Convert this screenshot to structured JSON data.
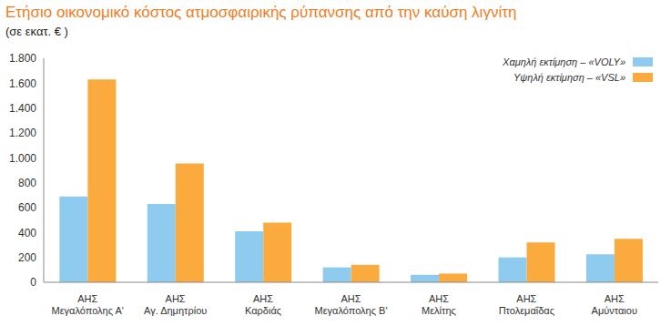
{
  "chart_data": {
    "type": "bar",
    "title": "Ετήσιο οικονομικό κόστος ατμοσφαιρικής ρύπανσης από την καύση λιγνίτη",
    "subtitle": "(σε εκατ. € )",
    "categories": [
      "ΑΗΣ Μεγαλόπολης Α'",
      "ΑΗΣ Αγ. Δημητρίου",
      "ΑΗΣ Καρδιάς",
      "ΑΗΣ Μεγαλόπολης Β'",
      "ΑΗΣ Μελίτης",
      "ΑΗΣ Πτολεμαΐδας",
      "ΑΗΣ Αμύνταιου"
    ],
    "series": [
      {
        "name": "Χαμηλή εκτίμηση – «VOLY»",
        "color": "#8ecbee",
        "values": [
          690,
          630,
          410,
          120,
          60,
          200,
          225
        ]
      },
      {
        "name": "Υψηλή εκτίμηση – «VSL»",
        "color": "#fbab3e",
        "values": [
          1630,
          955,
          480,
          140,
          70,
          320,
          350
        ]
      }
    ],
    "ylim": [
      0,
      1800
    ],
    "yticks": [
      0,
      200,
      400,
      600,
      800,
      {
        "value": 1000,
        "label": "1.000"
      },
      {
        "value": 1200,
        "label": "1.200"
      },
      {
        "value": 1400,
        "label": "1.400"
      },
      {
        "value": 1600,
        "label": "1.600"
      },
      {
        "value": 1800,
        "label": "1.800"
      }
    ],
    "grid": false,
    "legend": "upper right"
  }
}
